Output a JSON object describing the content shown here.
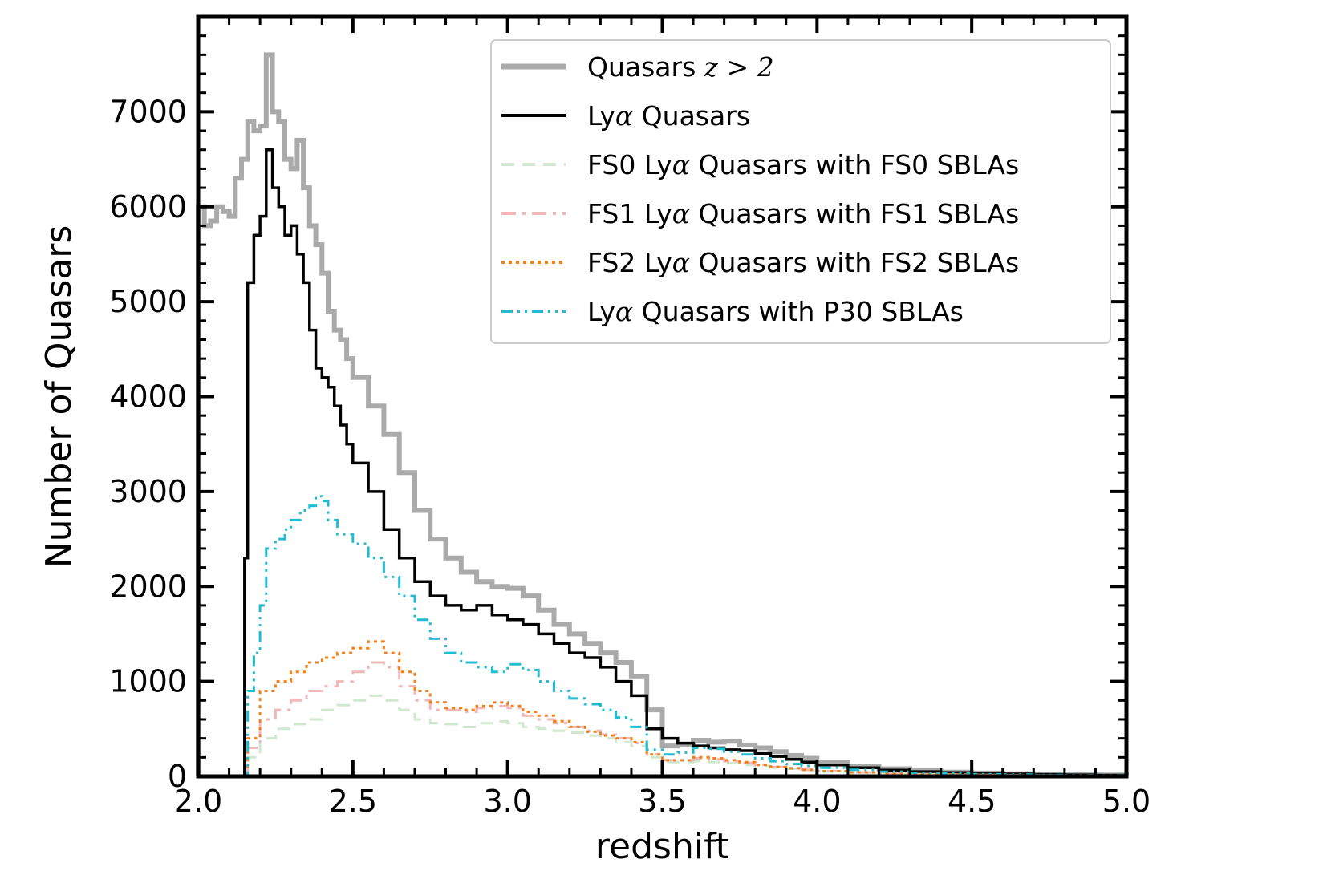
{
  "chart_data": {
    "type": "line",
    "xlabel": "redshift",
    "ylabel": "Number of Quasars",
    "xlim": [
      2.0,
      5.0
    ],
    "ylim": [
      0,
      8000
    ],
    "xticks": [
      "2.0",
      "2.5",
      "3.0",
      "3.5",
      "4.0",
      "4.5",
      "5.0"
    ],
    "xtick_values": [
      2.0,
      2.5,
      3.0,
      3.5,
      4.0,
      4.5,
      5.0
    ],
    "yticks": [
      "0",
      "1000",
      "2000",
      "3000",
      "4000",
      "5000",
      "6000",
      "7000"
    ],
    "ytick_values": [
      0,
      1000,
      2000,
      3000,
      4000,
      5000,
      6000,
      7000
    ],
    "grid": false,
    "legend_position": "top-right",
    "series": [
      {
        "name_prefix": "Quasars ",
        "name_math": "z > 2",
        "color": "#aaaaaa",
        "style": "solid",
        "x": [
          2.0,
          2.02,
          2.04,
          2.06,
          2.08,
          2.1,
          2.12,
          2.14,
          2.16,
          2.18,
          2.2,
          2.22,
          2.24,
          2.26,
          2.28,
          2.3,
          2.32,
          2.34,
          2.36,
          2.38,
          2.4,
          2.42,
          2.44,
          2.46,
          2.48,
          2.5,
          2.55,
          2.6,
          2.65,
          2.7,
          2.75,
          2.8,
          2.85,
          2.9,
          2.95,
          3.0,
          3.05,
          3.1,
          3.15,
          3.2,
          3.25,
          3.3,
          3.35,
          3.4,
          3.45,
          3.5,
          3.55,
          3.6,
          3.65,
          3.7,
          3.75,
          3.8,
          3.85,
          3.9,
          3.95,
          4.0,
          4.1,
          4.2,
          4.3,
          4.4,
          4.5,
          4.6,
          4.7,
          4.8,
          4.9,
          5.0
        ],
        "values": [
          6000,
          5800,
          5850,
          6000,
          5950,
          5900,
          6300,
          6500,
          6900,
          6800,
          6850,
          7600,
          7000,
          6900,
          6500,
          6400,
          6700,
          6200,
          5800,
          5600,
          5300,
          4900,
          4700,
          4600,
          4400,
          4200,
          3900,
          3600,
          3200,
          2800,
          2500,
          2300,
          2150,
          2050,
          2000,
          1980,
          1900,
          1750,
          1600,
          1500,
          1400,
          1300,
          1200,
          1050,
          700,
          320,
          330,
          380,
          360,
          370,
          330,
          300,
          260,
          220,
          190,
          150,
          110,
          80,
          60,
          45,
          35,
          28,
          22,
          18,
          15,
          12
        ]
      },
      {
        "name_prefix": "Ly",
        "name_math": "α",
        "name_suffix": " Quasars",
        "color": "#000000",
        "style": "solid",
        "x": [
          2.14,
          2.15,
          2.16,
          2.18,
          2.2,
          2.22,
          2.24,
          2.26,
          2.28,
          2.3,
          2.32,
          2.34,
          2.36,
          2.38,
          2.4,
          2.42,
          2.44,
          2.46,
          2.48,
          2.5,
          2.55,
          2.6,
          2.65,
          2.7,
          2.75,
          2.8,
          2.85,
          2.9,
          2.95,
          3.0,
          3.05,
          3.1,
          3.15,
          3.2,
          3.25,
          3.3,
          3.35,
          3.4,
          3.45,
          3.5,
          3.55,
          3.6,
          3.65,
          3.7,
          3.75,
          3.8,
          3.85,
          3.9,
          3.95,
          4.0,
          4.1,
          4.2,
          4.3,
          4.4,
          4.5,
          4.6,
          4.7,
          4.8,
          4.9,
          5.0
        ],
        "values": [
          0,
          2300,
          5200,
          5700,
          5900,
          6600,
          6200,
          6000,
          5700,
          5800,
          5500,
          5200,
          4700,
          4300,
          4200,
          4100,
          3900,
          3700,
          3500,
          3300,
          3000,
          2600,
          2300,
          2050,
          1900,
          1800,
          1750,
          1800,
          1700,
          1650,
          1600,
          1500,
          1400,
          1300,
          1250,
          1150,
          1000,
          850,
          500,
          400,
          350,
          320,
          300,
          280,
          270,
          240,
          210,
          180,
          150,
          120,
          90,
          65,
          50,
          40,
          32,
          25,
          20,
          16,
          13,
          10
        ]
      },
      {
        "name_prefix": "FS0 Ly",
        "name_math": "α",
        "name_suffix": " Quasars with FS0 SBLAs",
        "color": "#cfe8cf",
        "style": "dashed",
        "x": [
          2.14,
          2.16,
          2.2,
          2.25,
          2.3,
          2.35,
          2.4,
          2.45,
          2.5,
          2.55,
          2.6,
          2.65,
          2.7,
          2.75,
          2.8,
          2.85,
          2.9,
          2.95,
          3.0,
          3.05,
          3.1,
          3.15,
          3.2,
          3.25,
          3.3,
          3.35,
          3.4,
          3.45,
          3.5,
          3.55,
          3.6,
          3.65,
          3.7,
          3.75,
          3.8,
          3.85,
          3.9,
          3.95,
          4.0,
          4.1,
          4.2,
          4.3,
          4.4,
          4.5,
          4.6,
          4.7,
          4.8,
          4.9,
          5.0
        ],
        "values": [
          0,
          200,
          400,
          500,
          550,
          600,
          700,
          750,
          800,
          850,
          800,
          700,
          600,
          560,
          550,
          520,
          560,
          580,
          560,
          520,
          500,
          480,
          460,
          430,
          400,
          360,
          320,
          200,
          150,
          150,
          160,
          150,
          140,
          120,
          110,
          90,
          80,
          65,
          50,
          40,
          30,
          22,
          18,
          15,
          12,
          10,
          8,
          7,
          6
        ]
      },
      {
        "name_prefix": "FS1 Ly",
        "name_math": "α",
        "name_suffix": " Quasars with FS1 SBLAs",
        "color": "#f2b8b8",
        "style": "dashdot",
        "x": [
          2.14,
          2.16,
          2.2,
          2.25,
          2.3,
          2.35,
          2.4,
          2.45,
          2.5,
          2.55,
          2.6,
          2.65,
          2.7,
          2.75,
          2.8,
          2.85,
          2.9,
          2.95,
          3.0,
          3.05,
          3.1,
          3.15,
          3.2,
          3.25,
          3.3,
          3.35,
          3.4,
          3.45,
          3.5,
          3.55,
          3.6,
          3.65,
          3.7,
          3.75,
          3.8,
          3.85,
          3.9,
          3.95,
          4.0,
          4.1,
          4.2,
          4.3,
          4.4,
          4.5,
          4.6,
          4.7,
          4.8,
          4.9,
          5.0
        ],
        "values": [
          0,
          300,
          600,
          700,
          800,
          900,
          950,
          1000,
          1100,
          1200,
          1150,
          950,
          800,
          700,
          700,
          680,
          720,
          740,
          720,
          640,
          600,
          560,
          520,
          480,
          440,
          400,
          350,
          230,
          170,
          170,
          190,
          180,
          160,
          140,
          120,
          100,
          85,
          70,
          55,
          42,
          32,
          24,
          19,
          15,
          12,
          10,
          8,
          7,
          6
        ]
      },
      {
        "name_prefix": "FS2 Ly",
        "name_math": "α",
        "name_suffix": " Quasars with FS2 SBLAs",
        "color": "#f57f17",
        "style": "dotted",
        "x": [
          2.14,
          2.16,
          2.2,
          2.25,
          2.3,
          2.35,
          2.4,
          2.45,
          2.5,
          2.55,
          2.6,
          2.65,
          2.7,
          2.75,
          2.8,
          2.85,
          2.9,
          2.95,
          3.0,
          3.05,
          3.1,
          3.15,
          3.2,
          3.25,
          3.3,
          3.35,
          3.4,
          3.45,
          3.5,
          3.55,
          3.6,
          3.65,
          3.7,
          3.75,
          3.8,
          3.85,
          3.9,
          3.95,
          4.0,
          4.1,
          4.2,
          4.3,
          4.4,
          4.5,
          4.6,
          4.7,
          4.8,
          4.9,
          5.0
        ],
        "values": [
          0,
          400,
          900,
          1000,
          1100,
          1200,
          1250,
          1300,
          1350,
          1420,
          1300,
          1100,
          900,
          780,
          720,
          700,
          740,
          780,
          740,
          680,
          640,
          580,
          520,
          470,
          430,
          400,
          360,
          230,
          170,
          170,
          200,
          190,
          170,
          150,
          120,
          100,
          85,
          70,
          55,
          42,
          32,
          24,
          19,
          15,
          12,
          10,
          8,
          7,
          6
        ]
      },
      {
        "name_prefix": "Ly",
        "name_math": "α",
        "name_suffix": " Quasars with P30 SBLAs",
        "color": "#1fbcd2",
        "style": "dashdotdot",
        "x": [
          2.14,
          2.16,
          2.18,
          2.2,
          2.22,
          2.25,
          2.28,
          2.3,
          2.33,
          2.36,
          2.38,
          2.4,
          2.42,
          2.45,
          2.5,
          2.55,
          2.6,
          2.65,
          2.7,
          2.75,
          2.8,
          2.85,
          2.9,
          2.95,
          3.0,
          3.05,
          3.1,
          3.15,
          3.2,
          3.25,
          3.3,
          3.35,
          3.4,
          3.45,
          3.5,
          3.55,
          3.6,
          3.65,
          3.7,
          3.75,
          3.8,
          3.85,
          3.9,
          3.95,
          4.0,
          4.1,
          4.2,
          4.3,
          4.4,
          4.5,
          4.6,
          4.7,
          4.8,
          4.9,
          5.0
        ],
        "values": [
          0,
          900,
          1300,
          1800,
          2400,
          2500,
          2600,
          2700,
          2800,
          2850,
          2950,
          2900,
          2700,
          2550,
          2450,
          2300,
          2100,
          1900,
          1650,
          1450,
          1300,
          1200,
          1150,
          1100,
          1180,
          1120,
          1000,
          900,
          820,
          760,
          700,
          620,
          520,
          280,
          230,
          250,
          300,
          290,
          260,
          230,
          190,
          160,
          130,
          110,
          90,
          70,
          50,
          38,
          30,
          24,
          19,
          15,
          12,
          10,
          8
        ]
      }
    ]
  }
}
